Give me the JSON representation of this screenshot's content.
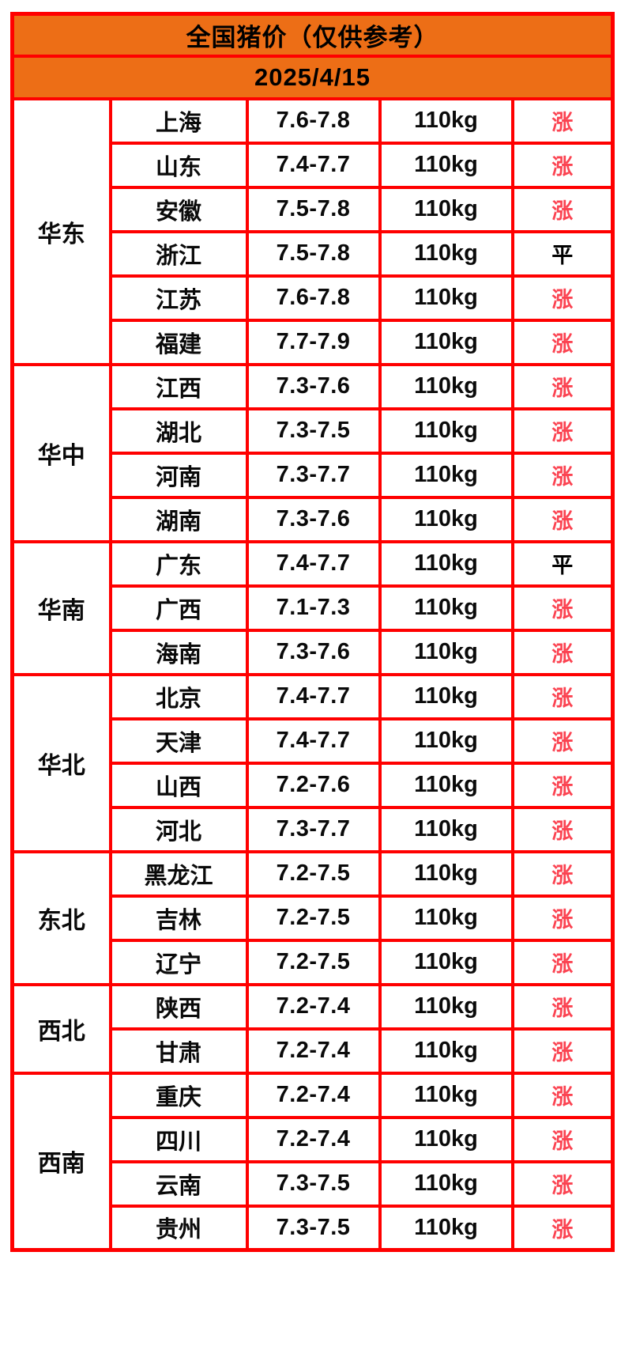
{
  "title": "全国猪价（仅供参考）",
  "date": "2025/4/15",
  "colors": {
    "border": "#ff0000",
    "header_bg": "#ed6e16",
    "rise_text": "#fb4351",
    "flat_text": "#000000"
  },
  "status_labels": {
    "rise": "涨",
    "flat": "平"
  },
  "regions": [
    {
      "name": "华东",
      "rows": [
        {
          "province": "上海",
          "price": "7.6-7.8",
          "weight": "110kg",
          "status": "涨",
          "trend": "rise"
        },
        {
          "province": "山东",
          "price": "7.4-7.7",
          "weight": "110kg",
          "status": "涨",
          "trend": "rise"
        },
        {
          "province": "安徽",
          "price": "7.5-7.8",
          "weight": "110kg",
          "status": "涨",
          "trend": "rise"
        },
        {
          "province": "浙江",
          "price": "7.5-7.8",
          "weight": "110kg",
          "status": "平",
          "trend": "flat"
        },
        {
          "province": "江苏",
          "price": "7.6-7.8",
          "weight": "110kg",
          "status": "涨",
          "trend": "rise"
        },
        {
          "province": "福建",
          "price": "7.7-7.9",
          "weight": "110kg",
          "status": "涨",
          "trend": "rise"
        }
      ]
    },
    {
      "name": "华中",
      "rows": [
        {
          "province": "江西",
          "price": "7.3-7.6",
          "weight": "110kg",
          "status": "涨",
          "trend": "rise"
        },
        {
          "province": "湖北",
          "price": "7.3-7.5",
          "weight": "110kg",
          "status": "涨",
          "trend": "rise"
        },
        {
          "province": "河南",
          "price": "7.3-7.7",
          "weight": "110kg",
          "status": "涨",
          "trend": "rise"
        },
        {
          "province": "湖南",
          "price": "7.3-7.6",
          "weight": "110kg",
          "status": "涨",
          "trend": "rise"
        }
      ]
    },
    {
      "name": "华南",
      "rows": [
        {
          "province": "广东",
          "price": "7.4-7.7",
          "weight": "110kg",
          "status": "平",
          "trend": "flat"
        },
        {
          "province": "广西",
          "price": "7.1-7.3",
          "weight": "110kg",
          "status": "涨",
          "trend": "rise"
        },
        {
          "province": "海南",
          "price": "7.3-7.6",
          "weight": "110kg",
          "status": "涨",
          "trend": "rise"
        }
      ]
    },
    {
      "name": "华北",
      "rows": [
        {
          "province": "北京",
          "price": "7.4-7.7",
          "weight": "110kg",
          "status": "涨",
          "trend": "rise"
        },
        {
          "province": "天津",
          "price": "7.4-7.7",
          "weight": "110kg",
          "status": "涨",
          "trend": "rise"
        },
        {
          "province": "山西",
          "price": "7.2-7.6",
          "weight": "110kg",
          "status": "涨",
          "trend": "rise"
        },
        {
          "province": "河北",
          "price": "7.3-7.7",
          "weight": "110kg",
          "status": "涨",
          "trend": "rise"
        }
      ]
    },
    {
      "name": "东北",
      "rows": [
        {
          "province": "黑龙江",
          "price": "7.2-7.5",
          "weight": "110kg",
          "status": "涨",
          "trend": "rise"
        },
        {
          "province": "吉林",
          "price": "7.2-7.5",
          "weight": "110kg",
          "status": "涨",
          "trend": "rise"
        },
        {
          "province": "辽宁",
          "price": "7.2-7.5",
          "weight": "110kg",
          "status": "涨",
          "trend": "rise"
        }
      ]
    },
    {
      "name": "西北",
      "rows": [
        {
          "province": "陕西",
          "price": "7.2-7.4",
          "weight": "110kg",
          "status": "涨",
          "trend": "rise"
        },
        {
          "province": "甘肃",
          "price": "7.2-7.4",
          "weight": "110kg",
          "status": "涨",
          "trend": "rise"
        }
      ]
    },
    {
      "name": "西南",
      "rows": [
        {
          "province": "重庆",
          "price": "7.2-7.4",
          "weight": "110kg",
          "status": "涨",
          "trend": "rise"
        },
        {
          "province": "四川",
          "price": "7.2-7.4",
          "weight": "110kg",
          "status": "涨",
          "trend": "rise"
        },
        {
          "province": "云南",
          "price": "7.3-7.5",
          "weight": "110kg",
          "status": "涨",
          "trend": "rise"
        },
        {
          "province": "贵州",
          "price": "7.3-7.5",
          "weight": "110kg",
          "status": "涨",
          "trend": "rise"
        }
      ]
    }
  ]
}
